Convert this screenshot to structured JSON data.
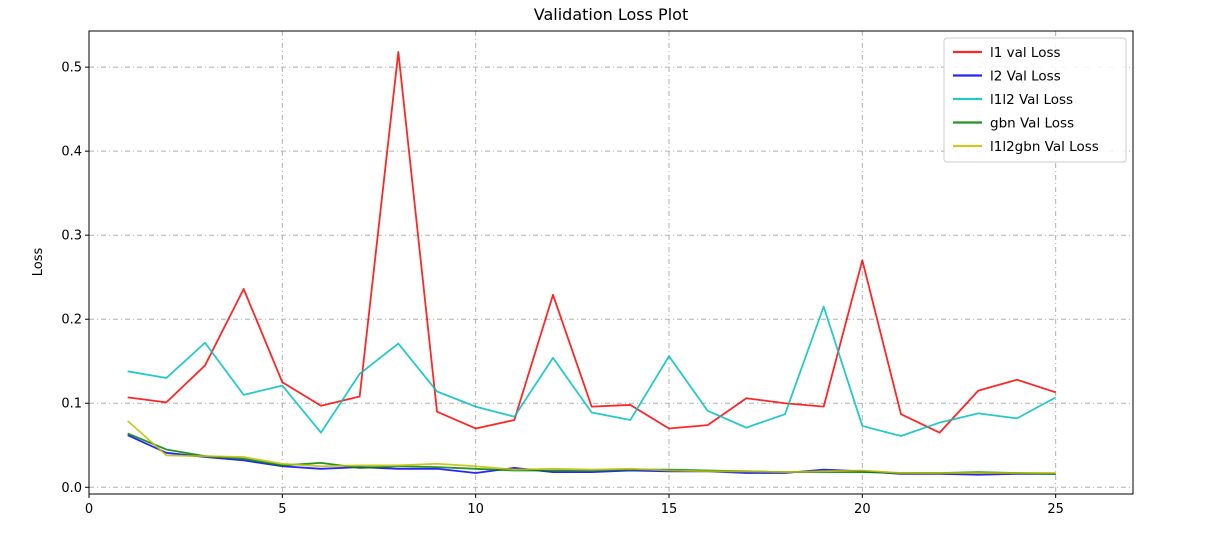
{
  "chart_data": {
    "type": "line",
    "title": "Validation Loss Plot",
    "xlabel": "",
    "ylabel": "Loss",
    "xlim": [
      0,
      27
    ],
    "ylim": [
      -0.008,
      0.543
    ],
    "xticks": [
      0,
      5,
      10,
      15,
      20,
      25
    ],
    "yticks": [
      0.0,
      0.1,
      0.2,
      0.3,
      0.4,
      0.5
    ],
    "grid": true,
    "legend_position": "upper-right",
    "x": [
      1,
      2,
      3,
      4,
      5,
      6,
      7,
      8,
      9,
      10,
      11,
      12,
      13,
      14,
      15,
      16,
      17,
      18,
      19,
      20,
      21,
      22,
      23,
      24,
      25
    ],
    "series": [
      {
        "name": "l1 val Loss",
        "color": "#ff0000",
        "values": [
          0.107,
          0.101,
          0.145,
          0.236,
          0.125,
          0.097,
          0.108,
          0.518,
          0.09,
          0.07,
          0.08,
          0.229,
          0.096,
          0.098,
          0.07,
          0.074,
          0.106,
          0.1,
          0.096,
          0.27,
          0.087,
          0.065,
          0.115,
          0.128,
          0.113
        ]
      },
      {
        "name": "l2 Val Loss",
        "color": "#0000ff",
        "values": [
          0.062,
          0.041,
          0.036,
          0.032,
          0.025,
          0.022,
          0.024,
          0.022,
          0.022,
          0.017,
          0.023,
          0.018,
          0.018,
          0.02,
          0.019,
          0.019,
          0.017,
          0.017,
          0.021,
          0.019,
          0.016,
          0.016,
          0.015,
          0.016,
          0.016
        ]
      },
      {
        "name": "l1l2 Val Loss",
        "color": "#00bfbf",
        "values": [
          0.138,
          0.13,
          0.172,
          0.11,
          0.121,
          0.065,
          0.135,
          0.171,
          0.114,
          0.096,
          0.084,
          0.154,
          0.089,
          0.08,
          0.156,
          0.091,
          0.071,
          0.087,
          0.215,
          0.073,
          0.061,
          0.077,
          0.088,
          0.082,
          0.107
        ]
      },
      {
        "name": "gbn Val Loss",
        "color": "#008000",
        "values": [
          0.064,
          0.045,
          0.037,
          0.034,
          0.026,
          0.029,
          0.023,
          0.025,
          0.024,
          0.022,
          0.02,
          0.02,
          0.02,
          0.021,
          0.021,
          0.02,
          0.019,
          0.018,
          0.018,
          0.018,
          0.017,
          0.017,
          0.018,
          0.017,
          0.016
        ]
      },
      {
        "name": "l1l2gbn Val Loss",
        "color": "#bfbf00",
        "values": [
          0.079,
          0.038,
          0.037,
          0.036,
          0.028,
          0.025,
          0.026,
          0.026,
          0.028,
          0.025,
          0.021,
          0.022,
          0.021,
          0.022,
          0.02,
          0.019,
          0.019,
          0.018,
          0.019,
          0.02,
          0.017,
          0.017,
          0.017,
          0.017,
          0.017
        ]
      }
    ]
  }
}
